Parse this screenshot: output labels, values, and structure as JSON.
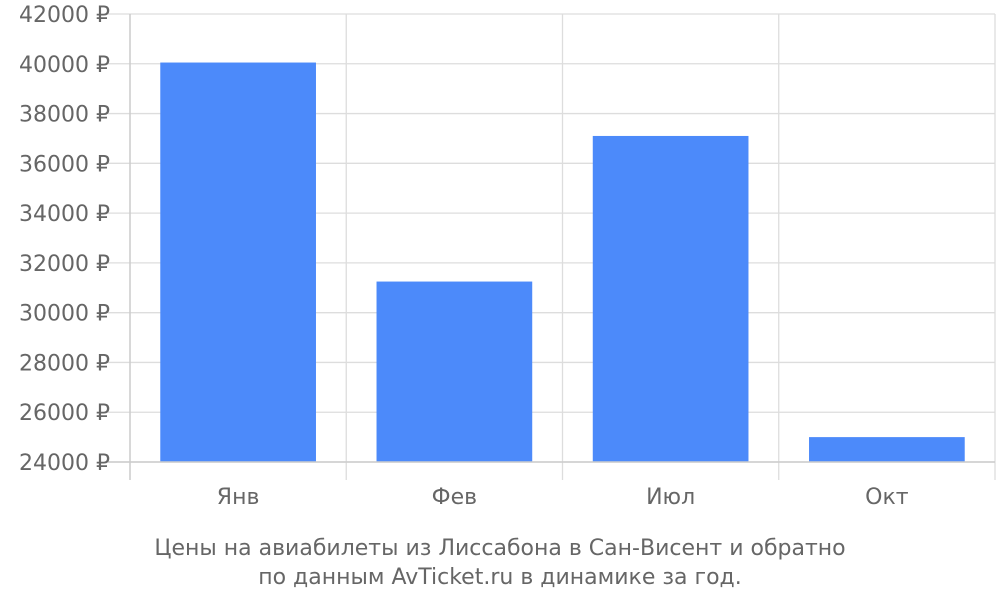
{
  "chart_data": {
    "type": "bar",
    "categories": [
      "Янв",
      "Фев",
      "Июл",
      "Окт"
    ],
    "values": [
      40050,
      31250,
      37100,
      25000
    ],
    "ylim": [
      24000,
      42000
    ],
    "yticks": [
      "24000 ₽",
      "26000 ₽",
      "28000 ₽",
      "30000 ₽",
      "32000 ₽",
      "34000 ₽",
      "36000 ₽",
      "38000 ₽",
      "40000 ₽",
      "42000 ₽"
    ],
    "unit": "₽",
    "grid": true,
    "bar_color": "#4c8afa",
    "caption_line1": "Цены на авиабилеты из Лиссабона в Сан-Висент и обратно",
    "caption_line2": "по данным AvTicket.ru в динамике за год."
  }
}
